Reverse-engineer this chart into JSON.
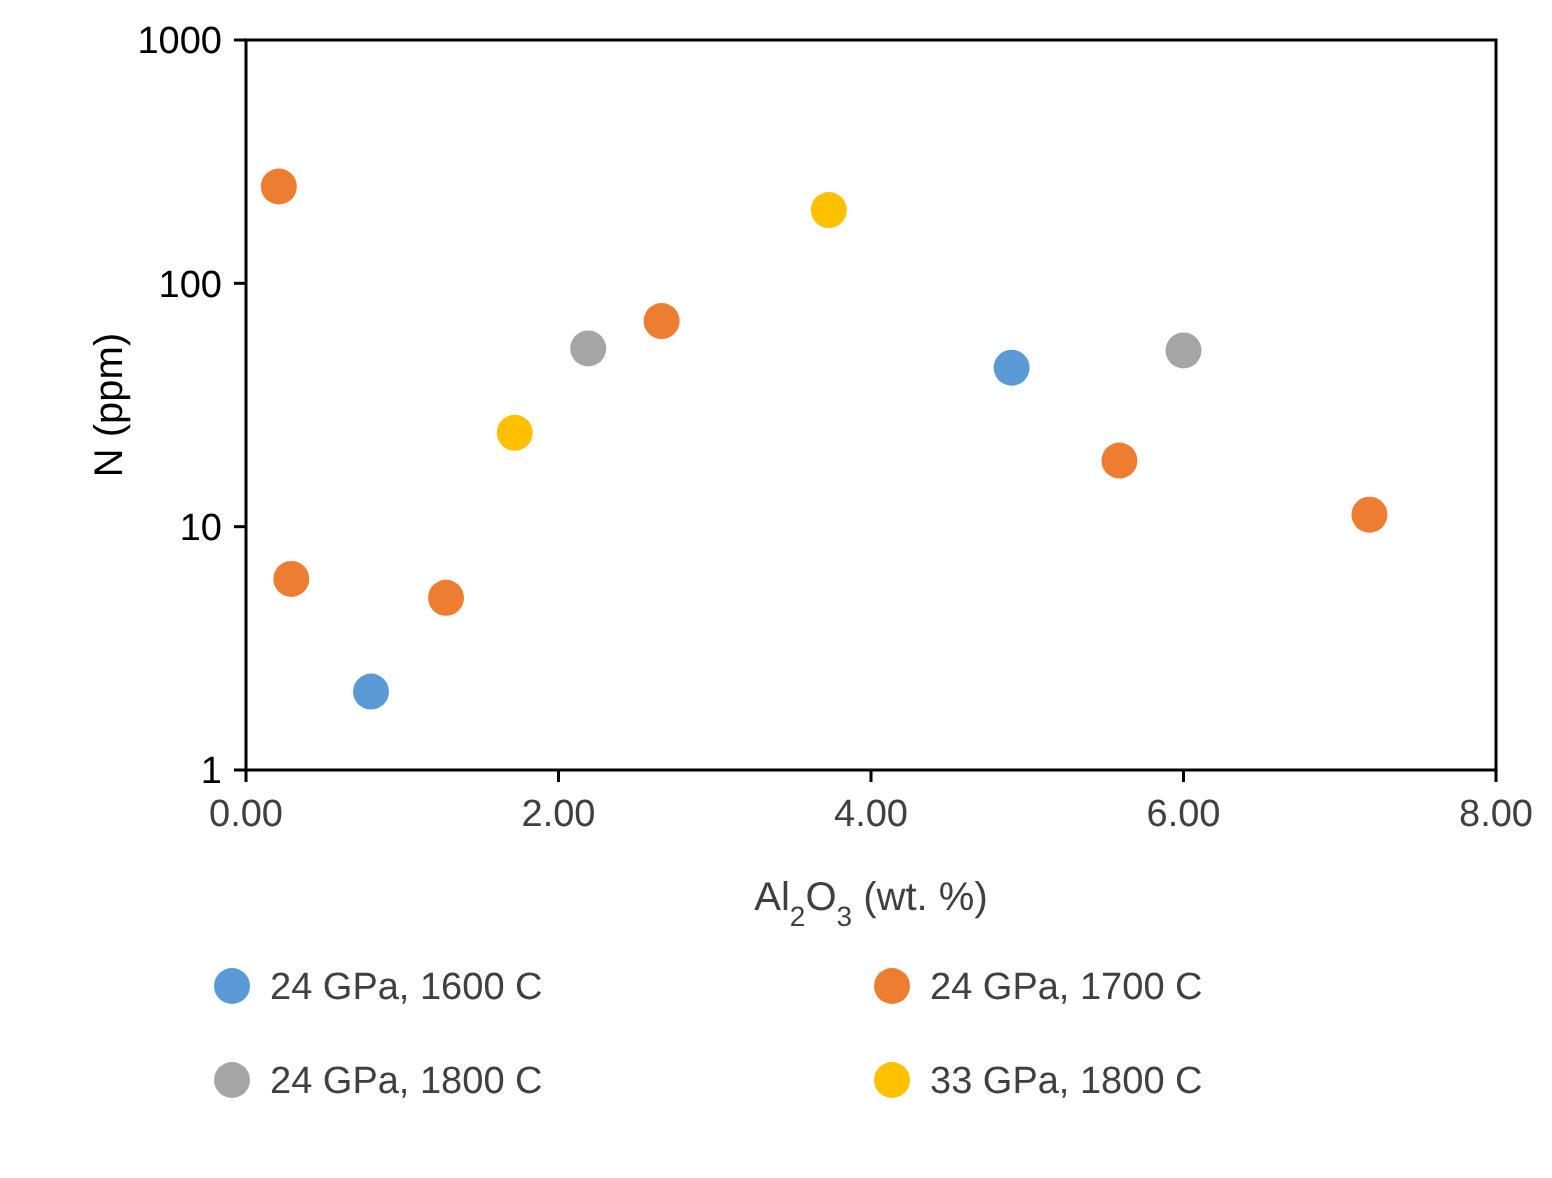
{
  "chart_data": {
    "type": "scatter",
    "xlabel": "Al$_{2}$O$_{3}$ (wt. %)",
    "ylabel": "N (ppm)",
    "log": "y",
    "xlim": [
      0,
      8
    ],
    "xticks": [
      {
        "value": 0,
        "label": "0.00"
      },
      {
        "value": 2,
        "label": "2.00"
      },
      {
        "value": 4,
        "label": "4.00"
      },
      {
        "value": 6,
        "label": "6.00"
      },
      {
        "value": 8,
        "label": "8.00"
      }
    ],
    "ylim": [
      1,
      1000
    ],
    "yticks": [
      1,
      10,
      100,
      1000
    ],
    "grid": false,
    "legend": "bottom",
    "marker": "circle",
    "series": [
      {
        "name": "24 GPa, 1600 C",
        "color": "#5b9bd5",
        "x": [
          0.8,
          4.9
        ],
        "values": [
          2.1,
          45
        ]
      },
      {
        "name": "24 GPa, 1700 C",
        "color": "#ed7d31",
        "x": [
          0.21,
          0.29,
          1.28,
          2.66,
          5.59,
          7.19
        ],
        "values": [
          250,
          6.1,
          5.1,
          70,
          18.7,
          11.2
        ]
      },
      {
        "name": "24 GPa, 1800 C",
        "color": "#a5a5a5",
        "x": [
          2.19,
          6.0
        ],
        "values": [
          54,
          53
        ]
      },
      {
        "name": "33 GPa, 1800 C",
        "color": "#ffc000",
        "x": [
          1.72,
          3.73
        ],
        "values": [
          24.3,
          200
        ]
      }
    ]
  }
}
